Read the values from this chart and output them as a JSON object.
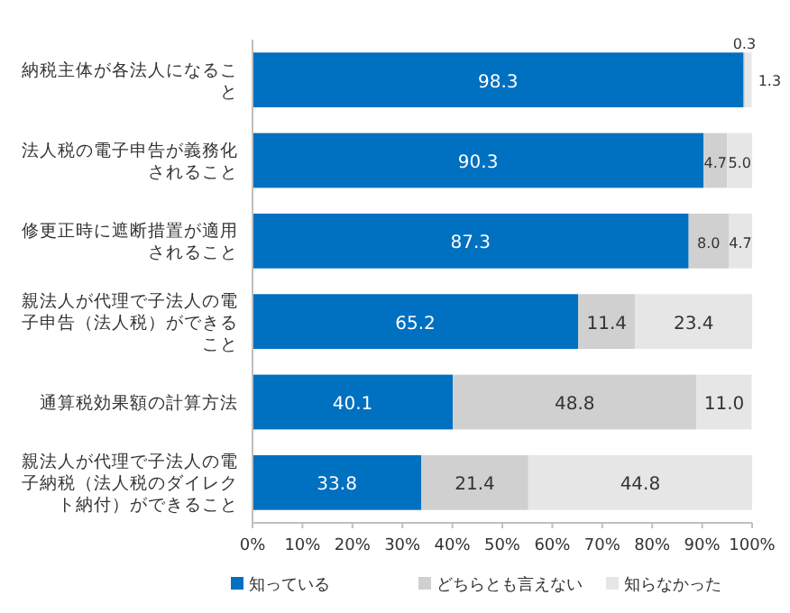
{
  "chart_data": {
    "type": "bar",
    "orientation": "horizontal",
    "stacked": true,
    "legend": "bottom",
    "categories": [
      "納税主体が各法人になること",
      "法人税の電子申告が義務化されること",
      "修更正時に遮断措置が適用されること",
      "親法人が代理で子法人の電子申告（法人税）ができること",
      "通算税効果額の計算方法",
      "親法人が代理で子法人の電子納税（法人税のダイレクト納付）ができること"
    ],
    "series": [
      {
        "name": "知っている",
        "color": "#0070c0",
        "values": [
          98.3,
          90.3,
          87.3,
          65.2,
          40.1,
          33.8
        ],
        "value_labels": [
          "98.3",
          "90.3",
          "87.3",
          "65.2",
          "40.1",
          "33.8"
        ]
      },
      {
        "name": "どちらとも言えない",
        "color": "#d0d0d0",
        "values": [
          0.3,
          4.7,
          8.0,
          11.4,
          48.8,
          21.4
        ],
        "value_labels": [
          "0.3",
          "4.7",
          "8.0",
          "11.4",
          "48.8",
          "21.4"
        ]
      },
      {
        "name": "知らなかった",
        "color": "#e6e6e6",
        "values": [
          1.3,
          5.0,
          4.7,
          23.4,
          11.0,
          44.8
        ],
        "value_labels": [
          "1.3",
          "5.0",
          "4.7",
          "23.4",
          "11.0",
          "44.8"
        ]
      }
    ],
    "xlim": [
      0,
      100
    ],
    "xticks": [
      {
        "value": 0,
        "label": "0%"
      },
      {
        "value": 10,
        "label": "10%"
      },
      {
        "value": 20,
        "label": "20%"
      },
      {
        "value": 30,
        "label": "30%"
      },
      {
        "value": 40,
        "label": "40%"
      },
      {
        "value": 50,
        "label": "50%"
      },
      {
        "value": 60,
        "label": "60%"
      },
      {
        "value": 70,
        "label": "70%"
      },
      {
        "value": 80,
        "label": "80%"
      },
      {
        "value": 90,
        "label": "90%"
      },
      {
        "value": 100,
        "label": "100%"
      }
    ]
  }
}
